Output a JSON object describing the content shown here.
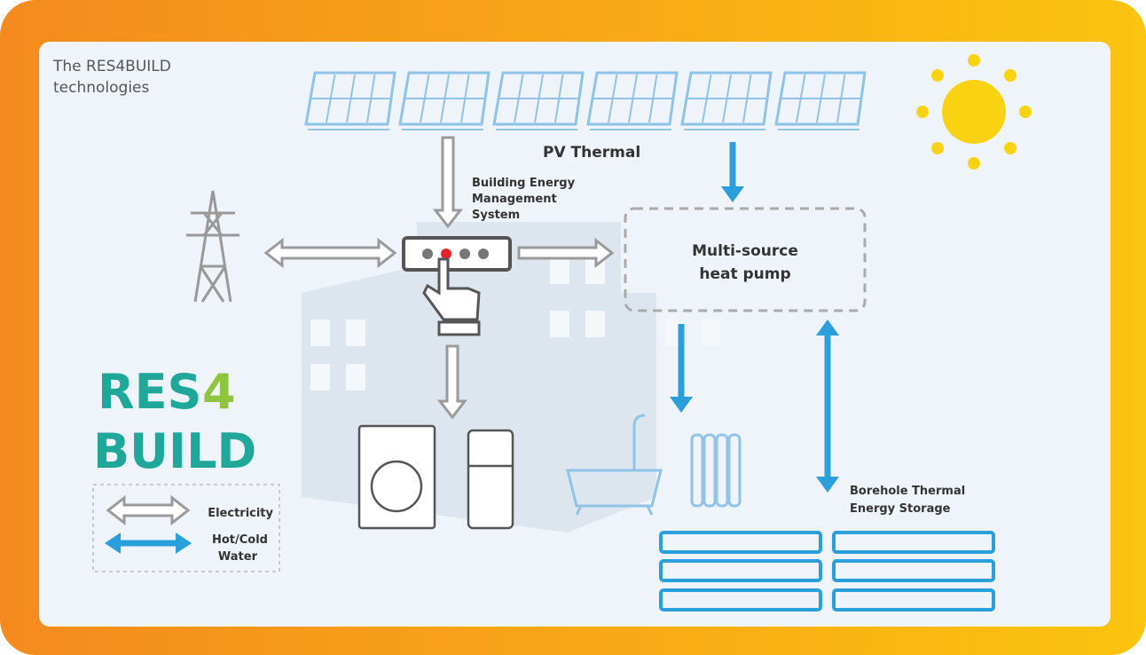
{
  "header": {
    "title_lines": [
      "The RES4BUILD",
      "technologies"
    ]
  },
  "labels": {
    "pv": "PV Thermal",
    "bems": [
      "Building Energy",
      "Management",
      "System"
    ],
    "heat_pump": [
      "Multi-source",
      "heat pump"
    ],
    "borehole": [
      "Borehole Thermal",
      "Energy Storage"
    ]
  },
  "logo": {
    "top": "RES",
    "digit": "4",
    "bottom": "BUILD"
  },
  "legend": {
    "electricity": "Electricity",
    "water": [
      "Hot/Cold",
      "Water"
    ]
  }
}
